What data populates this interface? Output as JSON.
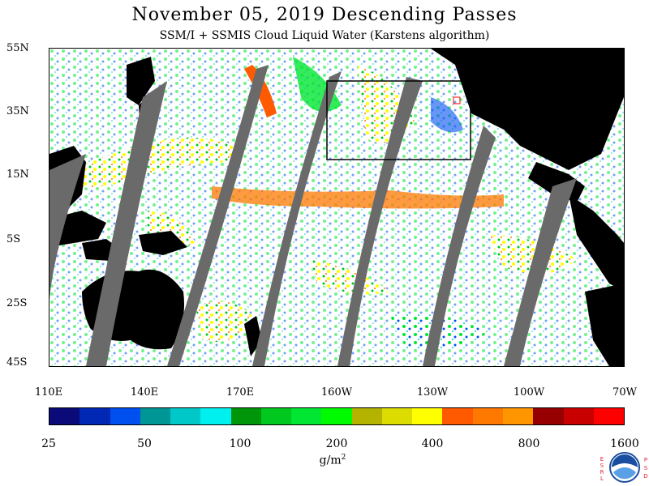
{
  "title": "November 05, 2019  Descending Passes",
  "subtitle": "SSM/I + SSMIS Cloud Liquid Water (Karstens algorithm)",
  "lat_labels": [
    "55N",
    "35N",
    "15N",
    "5S",
    "25S",
    "45S"
  ],
  "lon_labels": [
    "110E",
    "140E",
    "170E",
    "160W",
    "130W",
    "100W",
    "70W"
  ],
  "colorbar": {
    "colors": [
      "#0a0a78",
      "#0028b4",
      "#0050f0",
      "#009696",
      "#00c8c8",
      "#00f0f0",
      "#00960a",
      "#00c81e",
      "#00e632",
      "#00fa00",
      "#b4b400",
      "#dcdc00",
      "#ffff00",
      "#ff5a00",
      "#ff7800",
      "#ff9600",
      "#960000",
      "#c80000",
      "#ff0000"
    ],
    "tick_labels": [
      "25",
      "50",
      "100",
      "200",
      "400",
      "800",
      "1600"
    ]
  },
  "units": "g/m",
  "units_exponent": "2",
  "logo": {
    "left_text": "ESRL",
    "right_text": "PSD",
    "icon": "noaa-logo-icon"
  }
}
